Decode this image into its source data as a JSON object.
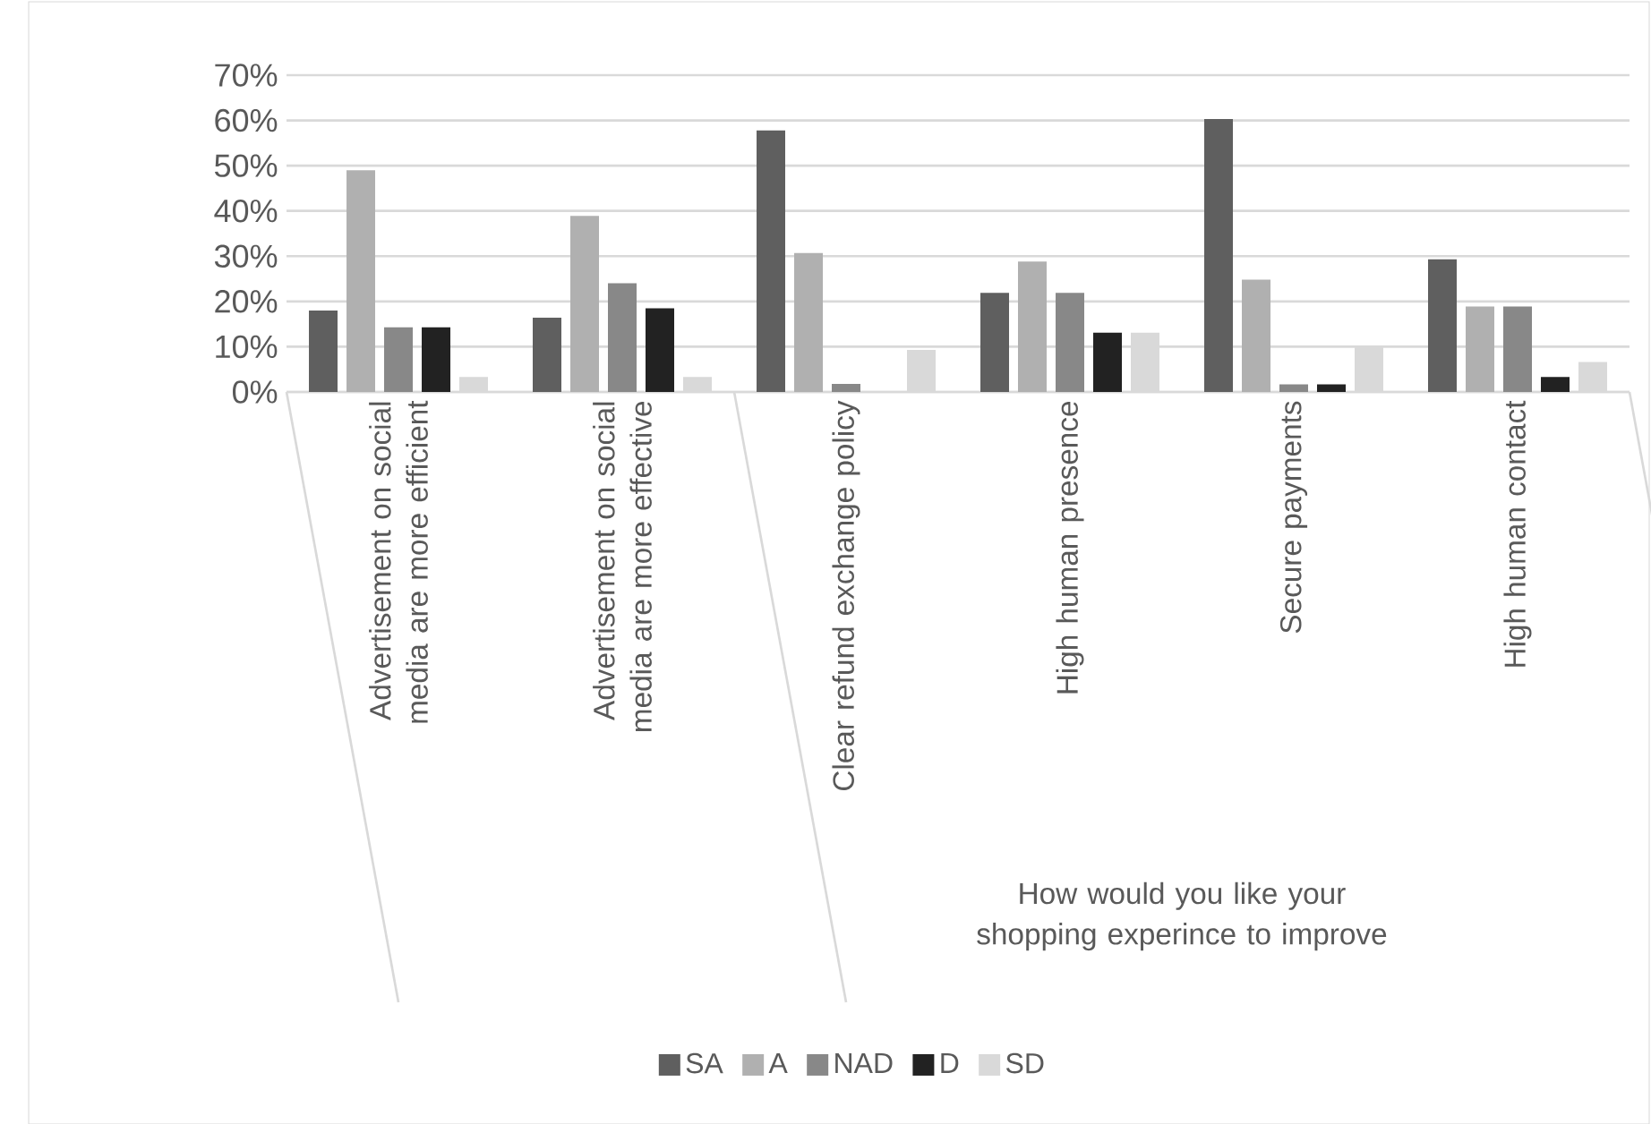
{
  "chart_data": {
    "type": "bar",
    "categories": [
      "Advertisement on social media are more efficient",
      "Advertisement on social media are more effective",
      "Clear refund exchange policy",
      "High human presence",
      "Secure payments",
      "High human contact"
    ],
    "series": [
      {
        "name": "SA",
        "color": "#5f5f5f",
        "values": [
          18,
          16.4,
          57.8,
          21.9,
          60.3,
          29.3
        ]
      },
      {
        "name": "A",
        "color": "#b0b0b0",
        "values": [
          49,
          38.9,
          30.7,
          28.8,
          24.8,
          18.9
        ]
      },
      {
        "name": "NAD",
        "color": "#888888",
        "values": [
          14.3,
          24,
          1.8,
          21.9,
          1.7,
          18.9
        ]
      },
      {
        "name": "D",
        "color": "#222222",
        "values": [
          14.3,
          18.5,
          0,
          13.1,
          1.7,
          3.3
        ]
      },
      {
        "name": "SD",
        "color": "#d9d9d9",
        "values": [
          3.3,
          3.3,
          9.3,
          13.1,
          10,
          6.6
        ]
      }
    ],
    "ylim": [
      0,
      70
    ],
    "yticks": [
      {
        "value": 0,
        "label": "0%"
      },
      {
        "value": 10,
        "label": "10%"
      },
      {
        "value": 20,
        "label": "20%"
      },
      {
        "value": 30,
        "label": "30%"
      },
      {
        "value": 40,
        "label": "40%"
      },
      {
        "value": 50,
        "label": "50%"
      },
      {
        "value": 60,
        "label": "60%"
      },
      {
        "value": 70,
        "label": "70%"
      }
    ],
    "grid": "y",
    "legend": "bottom",
    "annotations": [
      "How would you like your shopping experince to improve"
    ]
  }
}
